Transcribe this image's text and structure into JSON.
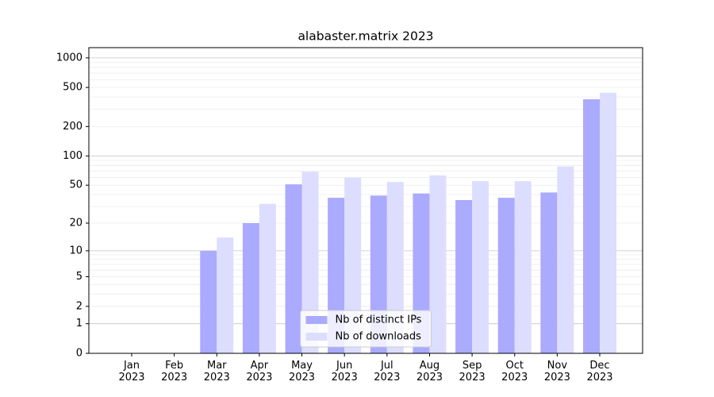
{
  "chart_data": {
    "type": "bar",
    "title": "alabaster.matrix 2023",
    "categories": [
      "Jan\n2023",
      "Feb\n2023",
      "Mar\n2023",
      "Apr\n2023",
      "May\n2023",
      "Jun\n2023",
      "Jul\n2023",
      "Aug\n2023",
      "Sep\n2023",
      "Oct\n2023",
      "Nov\n2023",
      "Dec\n2023"
    ],
    "series": [
      {
        "name": "Nb of distinct IPs",
        "color": "#aaaaff",
        "values": [
          0,
          0,
          10,
          20,
          51,
          37,
          39,
          41,
          35,
          37,
          42,
          379
        ]
      },
      {
        "name": "Nb of downloads",
        "color": "#ddddff",
        "values": [
          0,
          0,
          14,
          32,
          69,
          60,
          54,
          63,
          55,
          55,
          78,
          441
        ]
      }
    ],
    "scale": "log1p",
    "ylim": [
      0,
      1270
    ],
    "yticks": [
      0,
      1,
      2,
      5,
      10,
      20,
      50,
      100,
      200,
      500,
      1000
    ],
    "major_grid": [
      1,
      10,
      100,
      1000
    ],
    "minor_grid": [
      2,
      3,
      4,
      5,
      6,
      7,
      8,
      9,
      20,
      30,
      40,
      50,
      60,
      70,
      80,
      90,
      200,
      300,
      400,
      500,
      600,
      700,
      800,
      900
    ],
    "legend": "lower center"
  }
}
